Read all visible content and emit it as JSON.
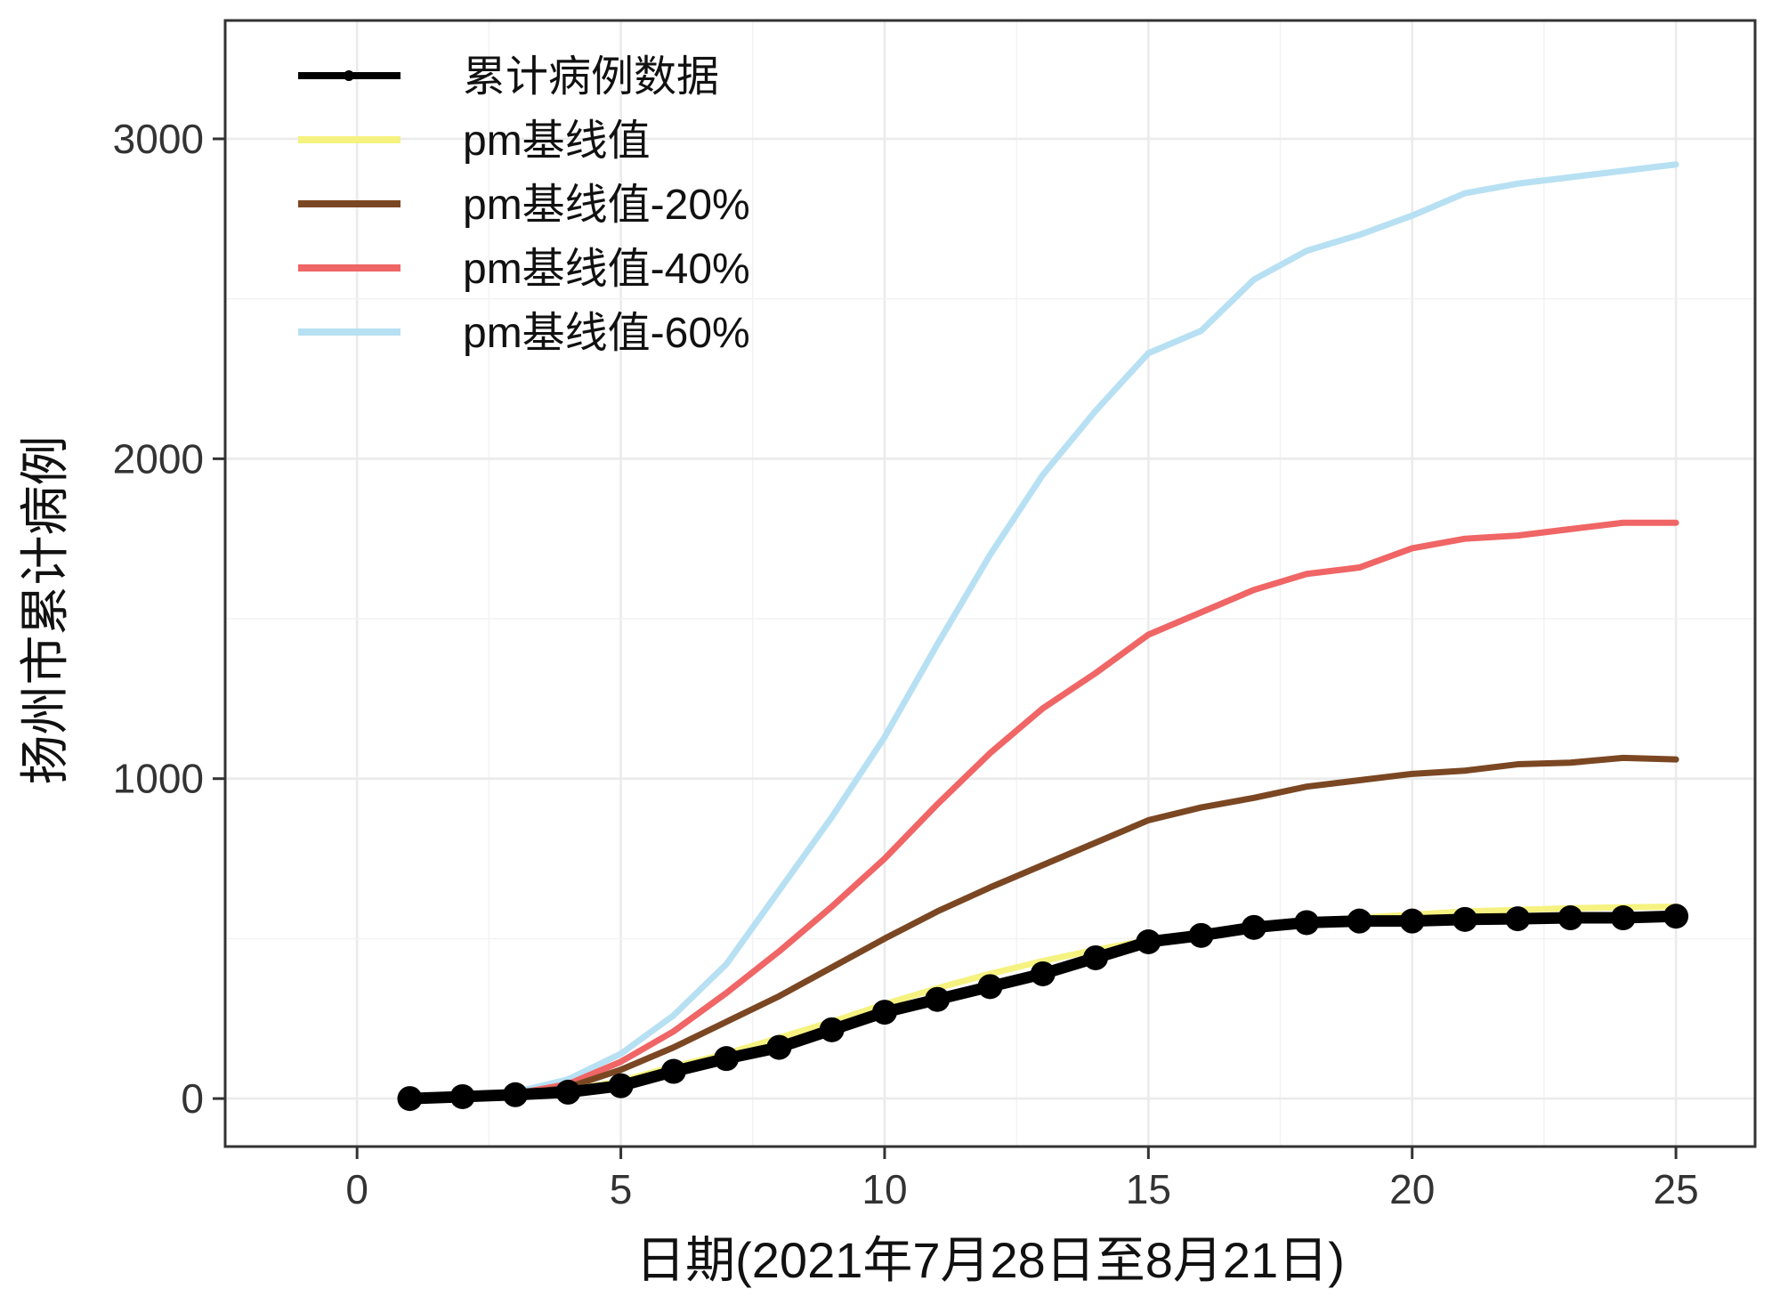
{
  "chart_data": {
    "type": "line",
    "title": "",
    "xlabel": "日期(2021年7月28日至8月21日)",
    "ylabel": "扬州市累计病例",
    "xlim": [
      -2.5,
      26.5
    ],
    "ylim": [
      -150,
      3370
    ],
    "x_ticks": [
      0,
      5,
      10,
      15,
      20,
      25
    ],
    "x_tick_labels": [
      "0",
      "5",
      "10",
      "15",
      "20",
      "25"
    ],
    "y_ticks": [
      0,
      1000,
      2000,
      3000
    ],
    "y_tick_labels": [
      "0",
      "1000",
      "2000",
      "3000"
    ],
    "grid": true,
    "legend_position": "top-left",
    "x": [
      1,
      2,
      3,
      4,
      5,
      6,
      7,
      8,
      9,
      10,
      11,
      12,
      13,
      14,
      15,
      16,
      17,
      18,
      19,
      20,
      21,
      22,
      23,
      24,
      25
    ],
    "series": [
      {
        "name": "累计病例数据",
        "color": "#000000",
        "marker": "circle",
        "values": [
          0,
          6,
          12,
          20,
          40,
          85,
          125,
          160,
          215,
          270,
          310,
          350,
          390,
          440,
          490,
          510,
          535,
          550,
          555,
          555,
          560,
          562,
          565,
          565,
          570
        ]
      },
      {
        "name": "pm基线值",
        "color": "#f5f280",
        "marker": "none",
        "values": [
          0,
          3,
          10,
          25,
          55,
          100,
          140,
          190,
          240,
          295,
          345,
          390,
          430,
          465,
          495,
          520,
          540,
          555,
          565,
          575,
          585,
          590,
          595,
          598,
          600
        ]
      },
      {
        "name": "pm基线值-20%",
        "color": "#7b4723",
        "marker": "none",
        "values": [
          0,
          3,
          12,
          35,
          90,
          160,
          240,
          320,
          410,
          500,
          585,
          660,
          730,
          800,
          870,
          910,
          940,
          975,
          995,
          1015,
          1025,
          1045,
          1050,
          1065,
          1060
        ]
      },
      {
        "name": "pm基线值-40%",
        "color": "#f06565",
        "marker": "none",
        "values": [
          0,
          4,
          15,
          45,
          115,
          210,
          330,
          460,
          600,
          750,
          920,
          1080,
          1220,
          1330,
          1450,
          1520,
          1590,
          1640,
          1660,
          1720,
          1750,
          1760,
          1780,
          1800,
          1800
        ]
      },
      {
        "name": "pm基线值-60%",
        "color": "#b7e0f3",
        "marker": "none",
        "values": [
          0,
          5,
          20,
          60,
          140,
          260,
          420,
          650,
          880,
          1130,
          1420,
          1700,
          1950,
          2150,
          2330,
          2400,
          2560,
          2650,
          2700,
          2760,
          2830,
          2860,
          2880,
          2900,
          2920
        ]
      }
    ]
  }
}
